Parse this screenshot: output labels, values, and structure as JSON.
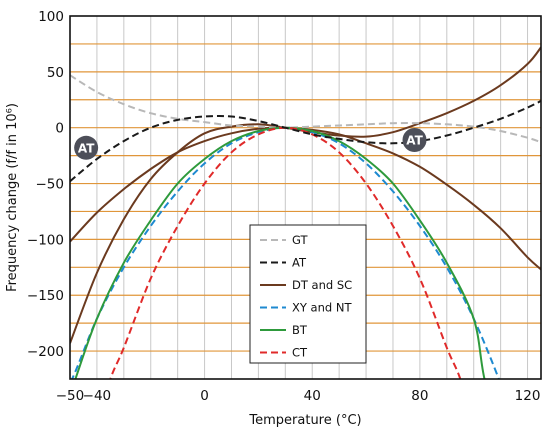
{
  "chart_data": {
    "type": "line",
    "title": "",
    "xlabel": "Temperature (°C)",
    "ylabel": "Frequency change (f/f in 10⁶)",
    "xlim": [
      -50,
      125
    ],
    "ylim": [
      -225,
      100
    ],
    "xticks": [
      -50,
      -40,
      0,
      40,
      80,
      120
    ],
    "xtick_labels": [
      "−50",
      "−40",
      "0",
      "40",
      "80",
      "120"
    ],
    "yticks": [
      100,
      50,
      0,
      -50,
      -100,
      -150,
      -200
    ],
    "ytick_labels": [
      "100",
      "50",
      "0",
      "−50",
      "−100",
      "−150",
      "−200"
    ],
    "grid": {
      "vertical_every": 10,
      "horizontal_every": 25,
      "vertical_color": "#c8c8c8",
      "horizontal_color": "#e0963a"
    },
    "legend_position": "center-right (inside plot)",
    "series": [
      {
        "name": "GT",
        "color": "#b8b8b8",
        "dash": "dashed",
        "x": [
          -50,
          -40,
          -30,
          -20,
          -10,
          0,
          10,
          20,
          30,
          40,
          50,
          60,
          70,
          80,
          90,
          100,
          110,
          120,
          125
        ],
        "y": [
          47,
          32,
          21,
          13,
          8,
          5,
          2,
          1,
          0,
          1,
          2,
          3,
          4,
          4,
          3,
          1,
          -3,
          -9,
          -13
        ]
      },
      {
        "name": "AT",
        "color": "#1a1a1a",
        "dash": "dashed",
        "x": [
          -50,
          -40,
          -30,
          -20,
          -10,
          0,
          10,
          20,
          30,
          40,
          50,
          60,
          70,
          80,
          90,
          100,
          110,
          120,
          125
        ],
        "y": [
          -48,
          -28,
          -12,
          0,
          7,
          10,
          10,
          6,
          0,
          -6,
          -10,
          -13,
          -14,
          -12,
          -7,
          0,
          8,
          18,
          24
        ]
      },
      {
        "name": "DT and SC",
        "color": "#6b3a1f",
        "dash": "solid",
        "x": [
          -50,
          -40,
          -30,
          -20,
          -10,
          0,
          10,
          20,
          30,
          40,
          50,
          60,
          70,
          80,
          90,
          100,
          110,
          120,
          125
        ],
        "y": [
          -193,
          -130,
          -82,
          -46,
          -22,
          -5,
          1,
          3,
          0,
          -4,
          -7,
          -8,
          -4,
          4,
          13,
          24,
          38,
          57,
          72
        ]
      },
      {
        "name": "XY and NT",
        "color": "#1e8ad0",
        "dash": "dashed",
        "x": [
          -60,
          -50,
          -40,
          -30,
          -20,
          -10,
          0,
          10,
          20,
          30,
          40,
          50,
          60,
          70,
          80,
          90,
          100,
          110,
          116
        ],
        "y": [
          -270,
          -229,
          -171,
          -125,
          -88,
          -57,
          -32,
          -14,
          -4,
          0,
          -4,
          -14,
          -32,
          -57,
          -88,
          -125,
          -171,
          -229,
          -270
        ]
      },
      {
        "name": "BT",
        "color": "#2e9a3c",
        "dash": "solid",
        "x": [
          -55,
          -48,
          -40,
          -30,
          -20,
          -10,
          0,
          10,
          20,
          30,
          40,
          50,
          60,
          70,
          80,
          90,
          100,
          104,
          110
        ],
        "y": [
          -275,
          -225,
          -171,
          -121,
          -83,
          -50,
          -28,
          -12,
          -3,
          0,
          -3,
          -12,
          -28,
          -50,
          -83,
          -121,
          -171,
          -225,
          -275
        ]
      },
      {
        "name": "CT",
        "color": "#e02a2a",
        "dash": "dashed",
        "x": [
          -40,
          -35,
          -30,
          -20,
          -10,
          0,
          10,
          20,
          30,
          40,
          50,
          60,
          70,
          80,
          90,
          95,
          100
        ],
        "y": [
          -268,
          -225,
          -197,
          -135,
          -88,
          -50,
          -22,
          -6,
          0,
          -6,
          -22,
          -50,
          -88,
          -135,
          -197,
          -225,
          -268
        ]
      },
      {
        "name": "",
        "color": "#6b3a1f",
        "dash": "solid",
        "x": [
          -50,
          -40,
          -30,
          -20,
          -10,
          0,
          10,
          20,
          30,
          40,
          50,
          60,
          70,
          80,
          90,
          100,
          110,
          120,
          125
        ],
        "y": [
          -102,
          -76,
          -55,
          -37,
          -22,
          -12,
          -5,
          -1,
          0,
          -2,
          -6,
          -14,
          -23,
          -35,
          -51,
          -69,
          -90,
          -116,
          -127
        ]
      }
    ],
    "annotations": [
      {
        "text": "AT",
        "x": -44,
        "y": -18
      },
      {
        "text": "AT",
        "x": 78,
        "y": -11
      }
    ]
  }
}
